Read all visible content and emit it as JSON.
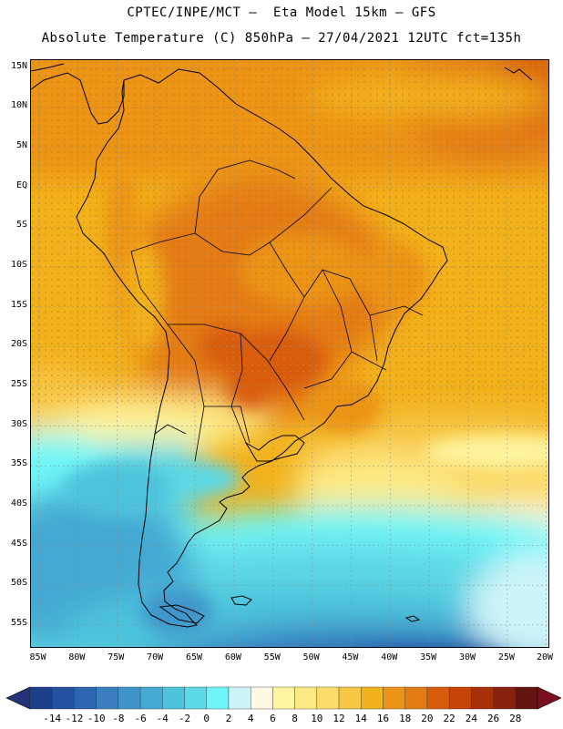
{
  "header": {
    "line1": "CPTEC/INPE/MCT –  Eta Model 15km – GFS",
    "line2": "Absolute Temperature (C) 850hPa – 27/04/2021 12UTC fct=135h"
  },
  "map": {
    "lat_range": [
      -58,
      16
    ],
    "lon_range": [
      -86,
      -19.5
    ],
    "lat_labels": [
      "15N",
      "10N",
      "5N",
      "EQ",
      "5S",
      "10S",
      "15S",
      "20S",
      "25S",
      "30S",
      "35S",
      "40S",
      "45S",
      "50S",
      "55S"
    ],
    "lat_values": [
      15,
      10,
      5,
      0,
      -5,
      -10,
      -15,
      -20,
      -25,
      -30,
      -35,
      -40,
      -45,
      -50,
      -55
    ],
    "lon_labels": [
      "85W",
      "80W",
      "75W",
      "70W",
      "65W",
      "60W",
      "55W",
      "50W",
      "45W",
      "40W",
      "35W",
      "30W",
      "25W",
      "20W"
    ],
    "lon_values": [
      -85,
      -80,
      -75,
      -70,
      -65,
      -60,
      -55,
      -50,
      -45,
      -40,
      -35,
      -30,
      -25,
      -20
    ]
  },
  "colorbar": {
    "labels": [
      "-14",
      "-12",
      "-10",
      "-8",
      "-6",
      "-4",
      "-2",
      "0",
      "2",
      "4",
      "6",
      "8",
      "10",
      "12",
      "14",
      "16",
      "18",
      "20",
      "22",
      "24",
      "26",
      "28"
    ],
    "colors": [
      "#1c3f8c",
      "#2452a0",
      "#2d66b0",
      "#3a7ec0",
      "#3f95ca",
      "#44aad3",
      "#4ec4dc",
      "#5fd8e5",
      "#6ef5f7",
      "#cdf4f9",
      "#fef8e4",
      "#fef6a2",
      "#fde984",
      "#fcdc6a",
      "#f7c845",
      "#f2b21c",
      "#eb9418",
      "#e37c14",
      "#d85c0e",
      "#c64408",
      "#a83008",
      "#882210",
      "#641410"
    ],
    "under_color": "#243278",
    "over_color": "#781020"
  }
}
